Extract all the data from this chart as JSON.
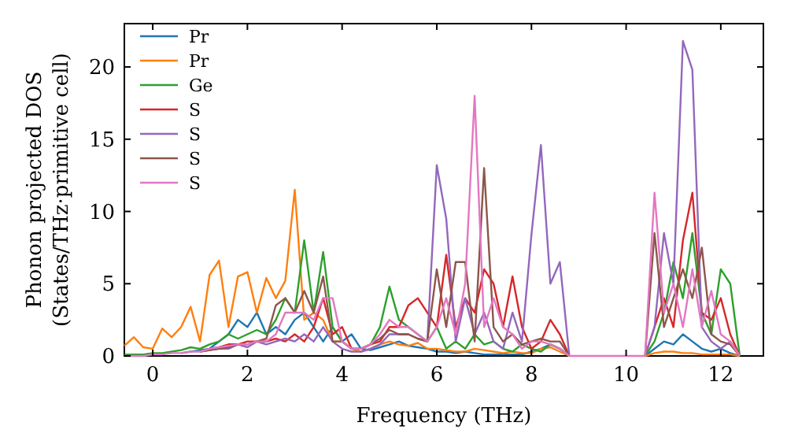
{
  "chart_data": {
    "type": "line",
    "xlabel": "Frequency (THz)",
    "ylabel": "Phonon projected DOS\n(States/THz·primitive cell)",
    "xlim": [
      -0.6,
      12.9
    ],
    "ylim": [
      0,
      23
    ],
    "xticks": [
      0,
      2,
      4,
      6,
      8,
      10,
      12
    ],
    "yticks": [
      0,
      5,
      10,
      15,
      20
    ],
    "grid": false,
    "legend": "top left",
    "marker": "none",
    "line_style": "solid",
    "x": [
      -0.6,
      -0.4,
      -0.2,
      0,
      0.2,
      0.4,
      0.6,
      0.8,
      1,
      1.2,
      1.4,
      1.6,
      1.8,
      2,
      2.2,
      2.4,
      2.6,
      2.8,
      3,
      3.2,
      3.4,
      3.6,
      3.8,
      4,
      4.2,
      4.4,
      4.6,
      4.8,
      5,
      5.2,
      5.4,
      5.6,
      5.8,
      6,
      6.2,
      6.4,
      6.6,
      6.8,
      7,
      7.2,
      7.4,
      7.6,
      7.8,
      8,
      8.2,
      8.4,
      8.6,
      8.8,
      9,
      9.2,
      9.4,
      9.6,
      9.8,
      10,
      10.2,
      10.4,
      10.6,
      10.8,
      11,
      11.2,
      11.4,
      11.6,
      11.8,
      12,
      12.2,
      12.4
    ],
    "series": [
      {
        "name": "Pr",
        "color": "#1f77b4",
        "values": [
          null,
          null,
          null,
          null,
          null,
          null,
          0.2,
          0.3,
          0.4,
          0.5,
          1.0,
          1.5,
          2.5,
          2.0,
          3.0,
          1.5,
          2.0,
          1.5,
          2.5,
          3.0,
          2.0,
          1.0,
          2.0,
          1.0,
          1.5,
          0.5,
          0.4,
          0.6,
          0.8,
          1.0,
          0.7,
          0.6,
          0.5,
          0.3,
          0.3,
          0.2,
          0.3,
          0.2,
          0.1,
          0.1,
          0.1,
          0.1,
          0.1,
          0.3,
          0.5,
          0.8,
          0.5,
          0,
          null,
          null,
          null,
          null,
          null,
          null,
          null,
          0,
          0.5,
          1.0,
          0.8,
          1.5,
          1.0,
          0.5,
          0.3,
          0.5,
          0.2,
          0
        ]
      },
      {
        "name": "Pr",
        "color": "#ff7f0e",
        "values": [
          0.7,
          1.3,
          0.6,
          0.5,
          1.9,
          1.3,
          2.0,
          3.4,
          1.0,
          5.6,
          6.6,
          2.0,
          5.5,
          5.8,
          3.0,
          5.4,
          4.0,
          5.2,
          11.5,
          2.5,
          3.0,
          2.5,
          1.0,
          1.0,
          0.5,
          0.3,
          0.5,
          0.8,
          1.0,
          0.8,
          0.7,
          0.9,
          0.5,
          0.5,
          0.4,
          0.3,
          0.3,
          0.5,
          0.4,
          0.3,
          0.2,
          0.3,
          0.2,
          0.2,
          0.5,
          0.6,
          0.3,
          0,
          null,
          null,
          null,
          null,
          null,
          null,
          null,
          0,
          0.2,
          0.3,
          0.3,
          0.2,
          0.2,
          0.1,
          0.1,
          0.1,
          0.1,
          0
        ]
      },
      {
        "name": "Ge",
        "color": "#2ca02c",
        "values": [
          0.1,
          0.1,
          0.1,
          0.2,
          0.2,
          0.3,
          0.4,
          0.6,
          0.5,
          0.8,
          1.0,
          1.5,
          1.2,
          1.5,
          1.8,
          1.5,
          2.5,
          4.0,
          3.0,
          8.0,
          3.0,
          7.2,
          2.0,
          1.0,
          0.5,
          0.5,
          0.8,
          2.0,
          4.8,
          2.5,
          2.0,
          1.5,
          1.0,
          2.0,
          0.5,
          1.0,
          0.5,
          1.5,
          0.8,
          1.0,
          0.5,
          0.3,
          0.8,
          0.5,
          0.3,
          0.8,
          0.5,
          0,
          null,
          null,
          null,
          null,
          null,
          null,
          null,
          0,
          1.0,
          3.0,
          6.5,
          4.0,
          8.5,
          3.0,
          1.5,
          6.0,
          5.0,
          0
        ]
      },
      {
        "name": "S",
        "color": "#d62728",
        "values": [
          null,
          null,
          null,
          null,
          null,
          null,
          null,
          null,
          0.3,
          0.5,
          0.6,
          0.8,
          0.8,
          1.0,
          1.0,
          1.0,
          1.2,
          1.0,
          1.5,
          1.0,
          2.0,
          4.0,
          1.5,
          2.0,
          0.5,
          0.5,
          0.8,
          1.0,
          2.0,
          2.0,
          3.5,
          4.0,
          3.0,
          2.0,
          7.0,
          2.0,
          4.0,
          3.0,
          6.0,
          5.0,
          2.0,
          5.5,
          2.0,
          0.5,
          1.0,
          2.5,
          1.5,
          0,
          null,
          null,
          null,
          null,
          null,
          null,
          null,
          0,
          2.0,
          4.0,
          2.0,
          8.0,
          11.3,
          3.0,
          2.5,
          4.0,
          1.5,
          0
        ]
      },
      {
        "name": "S",
        "color": "#9467bd",
        "values": [
          null,
          null,
          null,
          null,
          null,
          null,
          null,
          null,
          0.3,
          0.4,
          0.5,
          0.5,
          0.8,
          0.6,
          1.0,
          0.8,
          1.0,
          1.2,
          1.0,
          1.5,
          1.0,
          2.0,
          1.0,
          0.5,
          0.3,
          0.3,
          0.5,
          0.8,
          1.5,
          1.5,
          1.5,
          1.2,
          1.0,
          13.2,
          9.5,
          1.0,
          4.0,
          1.5,
          3.0,
          1.0,
          0.5,
          3.0,
          1.0,
          8.4,
          14.6,
          5.0,
          6.5,
          0,
          null,
          null,
          null,
          null,
          null,
          null,
          null,
          0,
          2.0,
          8.5,
          5.0,
          21.8,
          19.8,
          2.0,
          1.0,
          0.5,
          1.0,
          0
        ]
      },
      {
        "name": "S",
        "color": "#8c564b",
        "values": [
          null,
          null,
          null,
          null,
          null,
          null,
          null,
          null,
          0.3,
          0.4,
          0.5,
          0.6,
          0.8,
          0.8,
          1.0,
          1.2,
          3.5,
          4.0,
          3.0,
          4.5,
          3.0,
          5.5,
          1.0,
          1.0,
          0.5,
          0.5,
          0.8,
          1.2,
          1.8,
          1.5,
          1.5,
          1.2,
          1.0,
          6.0,
          2.0,
          6.5,
          6.5,
          1.0,
          13.0,
          2.0,
          1.0,
          1.5,
          0.8,
          1.0,
          1.2,
          1.0,
          1.0,
          0,
          null,
          null,
          null,
          null,
          null,
          null,
          null,
          0,
          8.5,
          2.0,
          4.0,
          6.0,
          4.0,
          7.5,
          1.5,
          1.0,
          0.8,
          0
        ]
      },
      {
        "name": "S",
        "color": "#e377c2",
        "values": [
          0,
          0,
          0,
          0.1,
          0.1,
          0.2,
          0.2,
          0.3,
          0.3,
          0.5,
          0.6,
          0.7,
          0.8,
          0.8,
          1.0,
          1.0,
          1.5,
          3.0,
          3.0,
          3.0,
          2.5,
          4.0,
          4.0,
          1.0,
          0.5,
          0.5,
          0.8,
          1.5,
          2.5,
          2.0,
          2.0,
          1.5,
          1.0,
          2.0,
          4.0,
          1.5,
          5.0,
          18.0,
          2.0,
          4.0,
          2.0,
          1.5,
          0.5,
          1.0,
          1.0,
          0.8,
          0.5,
          0,
          0,
          0,
          0,
          0,
          0,
          0,
          0,
          0,
          11.3,
          3.0,
          5.0,
          2.0,
          6.0,
          2.0,
          4.5,
          1.5,
          1.0,
          0
        ]
      }
    ]
  }
}
